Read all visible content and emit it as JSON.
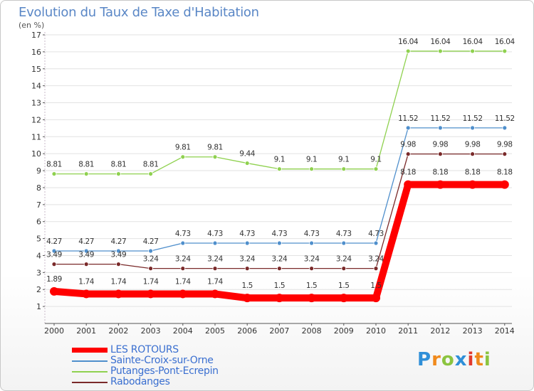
{
  "header": {
    "title": "Evolution du Taux de Taxe d'Habitation",
    "subtitle": "(en %)"
  },
  "logo": {
    "letters": [
      "P",
      "r",
      "o",
      "x",
      "i",
      "t",
      "i"
    ],
    "colors": [
      "#2f8fd8",
      "#f08a1c",
      "#8bc43f",
      "#2f8fd8",
      "#e23b2e",
      "#f08a1c",
      "#8bc43f"
    ]
  },
  "chart_data": {
    "type": "line",
    "title": "Evolution du Taux de Taxe d'Habitation",
    "subtitle": "(en %)",
    "xlabel": "",
    "ylabel": "",
    "x": [
      "2000",
      "2001",
      "2002",
      "2003",
      "2004",
      "2005",
      "2006",
      "2007",
      "2008",
      "2009",
      "2010",
      "2011",
      "2012",
      "2013",
      "2014"
    ],
    "ylim": [
      0,
      17
    ],
    "yticks": [
      1,
      2,
      3,
      4,
      5,
      6,
      7,
      8,
      9,
      10,
      11,
      12,
      13,
      14,
      15,
      16,
      17
    ],
    "grid": "horizontal",
    "legend_position": "bottom-left",
    "series": [
      {
        "name": "LES ROTOURS",
        "color": "#ff0000",
        "labels": [
          "1.89",
          "1.74",
          "1.74",
          "1.74",
          "1.74",
          "1.74",
          "1.5",
          "1.5",
          "1.5",
          "1.5",
          "1.5",
          "8.18",
          "8.18",
          "8.18",
          "8.18"
        ],
        "values": [
          1.89,
          1.74,
          1.74,
          1.74,
          1.74,
          1.74,
          1.5,
          1.5,
          1.5,
          1.5,
          1.5,
          8.18,
          8.18,
          8.18,
          8.18
        ]
      },
      {
        "name": "Sainte-Croix-sur-Orne",
        "color": "#4f8fcc",
        "labels": [
          "4.27",
          "4.27",
          "4.27",
          "4.27",
          "4.73",
          "4.73",
          "4.73",
          "4.73",
          "4.73",
          "4.73",
          "4.73",
          "11.52",
          "11.52",
          "11.52",
          "11.52"
        ],
        "values": [
          4.27,
          4.27,
          4.27,
          4.27,
          4.73,
          4.73,
          4.73,
          4.73,
          4.73,
          4.73,
          4.73,
          11.52,
          11.52,
          11.52,
          11.52
        ]
      },
      {
        "name": "Putanges-Pont-Ecrepin",
        "color": "#8fd14f",
        "labels": [
          "8.81",
          "8.81",
          "8.81",
          "8.81",
          "9.81",
          "9.81",
          "9.44",
          "9.1",
          "9.1",
          "9.1",
          "9.1",
          "16.04",
          "16.04",
          "16.04",
          "16.04"
        ],
        "values": [
          8.81,
          8.81,
          8.81,
          8.81,
          9.81,
          9.81,
          9.44,
          9.1,
          9.1,
          9.1,
          9.1,
          16.04,
          16.04,
          16.04,
          16.04
        ]
      },
      {
        "name": "Rabodanges",
        "color": "#7a2a2a",
        "labels": [
          "3.49",
          "3.49",
          "3.49",
          "3.24",
          "3.24",
          "3.24",
          "3.24",
          "3.24",
          "3.24",
          "3.24",
          "3.24",
          "9.98",
          "9.98",
          "9.98",
          "9.98"
        ],
        "values": [
          3.49,
          3.49,
          3.49,
          3.24,
          3.24,
          3.24,
          3.24,
          3.24,
          3.24,
          3.24,
          3.24,
          9.98,
          9.98,
          9.98,
          9.98
        ]
      }
    ]
  }
}
